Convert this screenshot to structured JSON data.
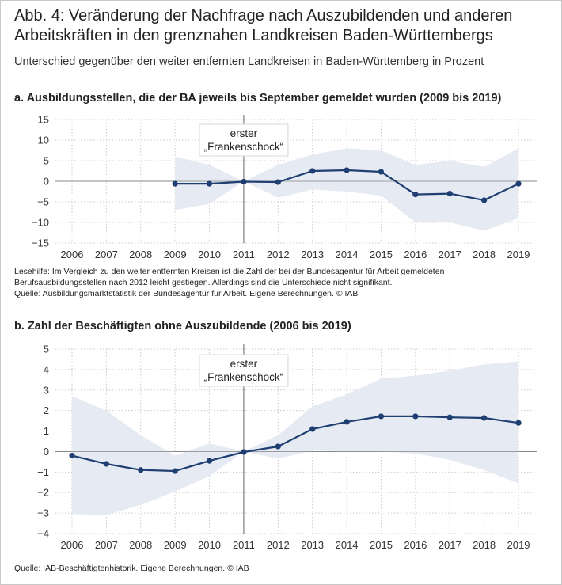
{
  "figure": {
    "title": "Abb. 4: Veränderung der Nachfrage nach Auszubildenden und anderen Arbeitskräften in den grenznahen Landkreisen Baden-Württembergs",
    "subtitle": "Unterschied gegenüber den weiter entfernten Landkreisen in Baden-Württemberg in Prozent"
  },
  "panel_a": {
    "heading": "a. Ausbildungsstellen, die der BA jeweils bis September gemeldet wurden (2009 bis 2019)",
    "annotation_line1": "erster",
    "annotation_line2": "„Frankenschock“",
    "note_line1": "Lesehilfe: Im Vergleich zu den weiter entfernten Kreisen ist die Zahl der bei der Bundesagentur für Arbeit gemeldeten",
    "note_line2": "Berufsausbildungsstellen nach 2012 leicht gestiegen. Allerdings sind die Unterschiede nicht signifikant.",
    "source": "Quelle: Ausbildungsmarktstatistik der Bundesagentur für Arbeit. Eigene Berechnungen. © IAB"
  },
  "panel_b": {
    "heading": "b. Zahl der Beschäftigten ohne Auszubildende (2006 bis 2019)",
    "annotation_line1": "erster",
    "annotation_line2": "„Frankenschock“",
    "source": "Quelle: IAB-Beschäftigtenhistorik. Eigene Berechnungen. © IAB"
  },
  "colors": {
    "line": "#1f3f72",
    "band": "#e6eaf3",
    "grid": "#c9c9c9",
    "axis": "#8a8a8a",
    "event_line": "#666666"
  },
  "chart_data": [
    {
      "type": "line",
      "title": "a. Ausbildungsstellen, die der BA jeweils bis September gemeldet wurden (2009 bis 2019)",
      "categories": [
        "2006",
        "2007",
        "2008",
        "2009",
        "2010",
        "2011",
        "2012",
        "2013",
        "2014",
        "2015",
        "2016",
        "2017",
        "2018",
        "2019"
      ],
      "yticks": [
        15,
        10,
        5,
        0,
        -5,
        -10,
        -15
      ],
      "ylim": [
        -15,
        15
      ],
      "grid": true,
      "event_year": "2011",
      "series": [
        {
          "x": [
            "2009",
            "2010",
            "2011",
            "2012",
            "2013",
            "2014",
            "2015",
            "2016",
            "2017",
            "2018",
            "2019"
          ],
          "values": [
            -0.6,
            -0.6,
            -0.1,
            -0.2,
            2.5,
            2.7,
            2.3,
            -3.2,
            -3.0,
            -4.6,
            -0.6
          ],
          "ci_upper": [
            6.0,
            4.0,
            0,
            4.0,
            6.5,
            8.0,
            7.5,
            4.0,
            5.0,
            3.5,
            8.0
          ],
          "ci_lower": [
            -7.0,
            -5.5,
            0,
            -4.0,
            -2.0,
            -2.5,
            -3.5,
            -10.0,
            -10.0,
            -12.0,
            -9.0
          ]
        }
      ]
    },
    {
      "type": "line",
      "title": "b. Zahl der Beschäftigten ohne Auszubildende (2006 bis 2019)",
      "categories": [
        "2006",
        "2007",
        "2008",
        "2009",
        "2010",
        "2011",
        "2012",
        "2013",
        "2014",
        "2015",
        "2016",
        "2017",
        "2018",
        "2019"
      ],
      "yticks": [
        5,
        4,
        3,
        2,
        1,
        0,
        -1,
        -2,
        -3,
        -4
      ],
      "ylim": [
        -4,
        5
      ],
      "grid": true,
      "event_year": "2011",
      "series": [
        {
          "x": [
            "2006",
            "2007",
            "2008",
            "2009",
            "2010",
            "2011",
            "2012",
            "2013",
            "2014",
            "2015",
            "2016",
            "2017",
            "2018",
            "2019"
          ],
          "values": [
            -0.2,
            -0.6,
            -0.9,
            -0.95,
            -0.45,
            -0.02,
            0.25,
            1.1,
            1.45,
            1.72,
            1.72,
            1.67,
            1.64,
            1.4
          ],
          "ci_upper": [
            2.7,
            2.0,
            0.8,
            -0.2,
            0.4,
            0,
            0.8,
            2.2,
            2.8,
            3.55,
            3.7,
            3.95,
            4.25,
            4.4
          ],
          "ci_lower": [
            -3.05,
            -3.1,
            -2.6,
            -1.95,
            -1.2,
            0,
            -0.35,
            0.05,
            0.0,
            0.0,
            -0.1,
            -0.4,
            -0.9,
            -1.55
          ]
        }
      ]
    }
  ]
}
